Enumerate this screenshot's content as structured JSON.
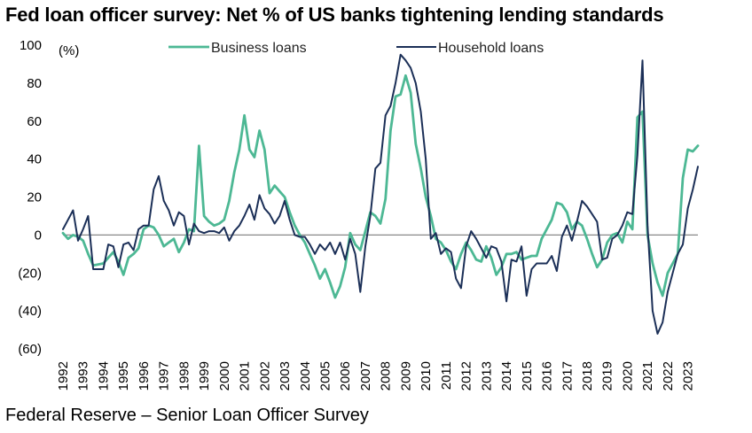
{
  "chart_data": {
    "type": "line",
    "title": "Fed loan officer survey: Net % of US banks tightening lending standards",
    "ylabel": "(%)",
    "source": "Federal Reserve – Senior Loan Officer Survey",
    "ylim": [
      -60,
      100
    ],
    "xlim": [
      1992,
      2023.5
    ],
    "y_ticks": [
      100,
      80,
      60,
      40,
      20,
      0,
      -20,
      -40,
      -60
    ],
    "y_tick_labels": [
      "100",
      "80",
      "60",
      "40",
      "20",
      "0",
      "(20)",
      "(40)",
      "(60)"
    ],
    "x_tick_labels": [
      "1992",
      "1993",
      "1994",
      "1995",
      "1996",
      "1997",
      "1998",
      "1999",
      "2000",
      "2001",
      "2002",
      "2003",
      "2004",
      "2005",
      "2006",
      "2007",
      "2008",
      "2009",
      "2010",
      "2011",
      "2012",
      "2013",
      "2014",
      "2015",
      "2016",
      "2017",
      "2018",
      "2019",
      "2020",
      "2021",
      "2022",
      "2023"
    ],
    "grid": false,
    "legend": "top",
    "colors": {
      "business": "#4db894",
      "household": "#1b2f57",
      "zero_line": "#888888"
    },
    "series": [
      {
        "name": "Business loans",
        "points": [
          [
            1992.0,
            1
          ],
          [
            1992.25,
            -2
          ],
          [
            1992.5,
            0
          ],
          [
            1992.75,
            -1
          ],
          [
            1993.0,
            -3
          ],
          [
            1993.25,
            -10
          ],
          [
            1993.5,
            -16
          ],
          [
            1994.0,
            -15
          ],
          [
            1994.25,
            -12
          ],
          [
            1994.5,
            -9
          ],
          [
            1994.75,
            -14
          ],
          [
            1995.0,
            -21
          ],
          [
            1995.25,
            -12
          ],
          [
            1995.5,
            -10
          ],
          [
            1995.75,
            -7
          ],
          [
            1996.0,
            3
          ],
          [
            1996.25,
            5
          ],
          [
            1996.5,
            4
          ],
          [
            1996.75,
            0
          ],
          [
            1997.0,
            -6
          ],
          [
            1997.25,
            -4
          ],
          [
            1997.5,
            -2
          ],
          [
            1997.75,
            -9
          ],
          [
            1998.0,
            -4
          ],
          [
            1998.25,
            3
          ],
          [
            1998.5,
            2
          ],
          [
            1998.75,
            47
          ],
          [
            1999.0,
            10
          ],
          [
            1999.25,
            7
          ],
          [
            1999.5,
            5
          ],
          [
            1999.75,
            6
          ],
          [
            2000.0,
            8
          ],
          [
            2000.25,
            18
          ],
          [
            2000.5,
            33
          ],
          [
            2000.75,
            45
          ],
          [
            2001.0,
            63
          ],
          [
            2001.25,
            45
          ],
          [
            2001.5,
            41
          ],
          [
            2001.75,
            55
          ],
          [
            2002.0,
            45
          ],
          [
            2002.25,
            22
          ],
          [
            2002.5,
            26
          ],
          [
            2002.75,
            23
          ],
          [
            2003.0,
            20
          ],
          [
            2003.25,
            12
          ],
          [
            2003.5,
            5
          ],
          [
            2003.75,
            0
          ],
          [
            2004.0,
            -4
          ],
          [
            2004.25,
            -10
          ],
          [
            2004.5,
            -16
          ],
          [
            2004.75,
            -23
          ],
          [
            2005.0,
            -18
          ],
          [
            2005.25,
            -25
          ],
          [
            2005.5,
            -33
          ],
          [
            2005.75,
            -27
          ],
          [
            2006.0,
            -17
          ],
          [
            2006.25,
            1
          ],
          [
            2006.5,
            -5
          ],
          [
            2006.75,
            -8
          ],
          [
            2007.0,
            2
          ],
          [
            2007.25,
            12
          ],
          [
            2007.5,
            10
          ],
          [
            2007.75,
            6
          ],
          [
            2008.0,
            19
          ],
          [
            2008.25,
            55
          ],
          [
            2008.5,
            73
          ],
          [
            2008.75,
            74
          ],
          [
            2009.0,
            84
          ],
          [
            2009.25,
            75
          ],
          [
            2009.5,
            48
          ],
          [
            2009.75,
            35
          ],
          [
            2010.0,
            20
          ],
          [
            2010.25,
            10
          ],
          [
            2010.5,
            -2
          ],
          [
            2010.75,
            -4
          ],
          [
            2011.0,
            -8
          ],
          [
            2011.25,
            -14
          ],
          [
            2011.5,
            -18
          ],
          [
            2011.75,
            -10
          ],
          [
            2012.0,
            -4
          ],
          [
            2012.25,
            -8
          ],
          [
            2012.5,
            -13
          ],
          [
            2012.75,
            -14
          ],
          [
            2013.0,
            -6
          ],
          [
            2013.25,
            -12
          ],
          [
            2013.5,
            -21
          ],
          [
            2013.75,
            -17
          ],
          [
            2014.0,
            -10
          ],
          [
            2014.25,
            -10
          ],
          [
            2014.5,
            -9
          ],
          [
            2014.75,
            -13
          ],
          [
            2015.0,
            -12
          ],
          [
            2015.25,
            -11
          ],
          [
            2015.5,
            -11
          ],
          [
            2015.75,
            -2
          ],
          [
            2016.0,
            3
          ],
          [
            2016.25,
            8
          ],
          [
            2016.5,
            17
          ],
          [
            2016.75,
            16
          ],
          [
            2017.0,
            12
          ],
          [
            2017.25,
            3
          ],
          [
            2017.5,
            7
          ],
          [
            2017.75,
            5
          ],
          [
            2018.0,
            -2
          ],
          [
            2018.25,
            -10
          ],
          [
            2018.5,
            -17
          ],
          [
            2018.75,
            -13
          ],
          [
            2019.0,
            -4
          ],
          [
            2019.25,
            0
          ],
          [
            2019.5,
            1
          ],
          [
            2019.75,
            -4
          ],
          [
            2020.0,
            7
          ],
          [
            2020.25,
            3
          ],
          [
            2020.5,
            62
          ],
          [
            2020.75,
            65
          ],
          [
            2021.0,
            0
          ],
          [
            2021.25,
            -15
          ],
          [
            2021.5,
            -25
          ],
          [
            2021.75,
            -32
          ],
          [
            2022.0,
            -20
          ],
          [
            2022.25,
            -15
          ],
          [
            2022.5,
            -10
          ],
          [
            2022.75,
            30
          ],
          [
            2023.0,
            45
          ],
          [
            2023.25,
            44
          ],
          [
            2023.5,
            47
          ]
        ]
      },
      {
        "name": "Household loans",
        "points": [
          [
            1992.0,
            3
          ],
          [
            1992.25,
            8
          ],
          [
            1992.5,
            13
          ],
          [
            1992.75,
            -3
          ],
          [
            1993.0,
            3
          ],
          [
            1993.25,
            10
          ],
          [
            1993.5,
            -18
          ],
          [
            1994.0,
            -18
          ],
          [
            1994.25,
            -5
          ],
          [
            1994.5,
            -6
          ],
          [
            1994.75,
            -17
          ],
          [
            1995.0,
            -5
          ],
          [
            1995.25,
            -4
          ],
          [
            1995.5,
            -8
          ],
          [
            1995.75,
            3
          ],
          [
            1996.0,
            5
          ],
          [
            1996.25,
            5
          ],
          [
            1996.5,
            24
          ],
          [
            1996.75,
            31
          ],
          [
            1997.0,
            18
          ],
          [
            1997.25,
            13
          ],
          [
            1997.5,
            5
          ],
          [
            1997.75,
            12
          ],
          [
            1998.0,
            10
          ],
          [
            1998.25,
            -5
          ],
          [
            1998.5,
            6
          ],
          [
            1998.75,
            2
          ],
          [
            1999.0,
            1
          ],
          [
            1999.25,
            2
          ],
          [
            1999.5,
            2
          ],
          [
            1999.75,
            1
          ],
          [
            2000.0,
            4
          ],
          [
            2000.25,
            -3
          ],
          [
            2000.5,
            2
          ],
          [
            2000.75,
            5
          ],
          [
            2001.0,
            10
          ],
          [
            2001.25,
            16
          ],
          [
            2001.5,
            8
          ],
          [
            2001.75,
            21
          ],
          [
            2002.0,
            14
          ],
          [
            2002.25,
            11
          ],
          [
            2002.5,
            6
          ],
          [
            2002.75,
            10
          ],
          [
            2003.0,
            18
          ],
          [
            2003.25,
            8
          ],
          [
            2003.5,
            0
          ],
          [
            2003.75,
            -1
          ],
          [
            2004.0,
            -1
          ],
          [
            2004.25,
            -5
          ],
          [
            2004.5,
            -10
          ],
          [
            2004.75,
            -5
          ],
          [
            2005.0,
            -8
          ],
          [
            2005.25,
            -4
          ],
          [
            2005.5,
            -10
          ],
          [
            2005.75,
            -4
          ],
          [
            2006.0,
            -13
          ],
          [
            2006.25,
            -2
          ],
          [
            2006.5,
            -10
          ],
          [
            2006.75,
            -30
          ],
          [
            2007.0,
            -6
          ],
          [
            2007.25,
            10
          ],
          [
            2007.5,
            35
          ],
          [
            2007.75,
            38
          ],
          [
            2008.0,
            63
          ],
          [
            2008.25,
            68
          ],
          [
            2008.5,
            80
          ],
          [
            2008.75,
            95
          ],
          [
            2009.0,
            92
          ],
          [
            2009.25,
            88
          ],
          [
            2009.5,
            80
          ],
          [
            2009.75,
            65
          ],
          [
            2010.0,
            40
          ],
          [
            2010.25,
            -2
          ],
          [
            2010.5,
            1
          ],
          [
            2010.75,
            -10
          ],
          [
            2011.0,
            -7
          ],
          [
            2011.25,
            -9
          ],
          [
            2011.5,
            -23
          ],
          [
            2011.75,
            -28
          ],
          [
            2012.0,
            -6
          ],
          [
            2012.25,
            2
          ],
          [
            2012.5,
            -2
          ],
          [
            2012.75,
            -7
          ],
          [
            2013.0,
            -12
          ],
          [
            2013.25,
            -6
          ],
          [
            2013.5,
            -7
          ],
          [
            2013.75,
            -14
          ],
          [
            2014.0,
            -35
          ],
          [
            2014.25,
            -13
          ],
          [
            2014.5,
            -14
          ],
          [
            2014.75,
            -6
          ],
          [
            2015.0,
            -32
          ],
          [
            2015.25,
            -18
          ],
          [
            2015.5,
            -15
          ],
          [
            2015.75,
            -15
          ],
          [
            2016.0,
            -15
          ],
          [
            2016.25,
            -11
          ],
          [
            2016.5,
            -19
          ],
          [
            2016.75,
            -1
          ],
          [
            2017.0,
            5
          ],
          [
            2017.25,
            -3
          ],
          [
            2017.5,
            7
          ],
          [
            2017.75,
            18
          ],
          [
            2018.0,
            15
          ],
          [
            2018.25,
            11
          ],
          [
            2018.5,
            7
          ],
          [
            2018.75,
            -13
          ],
          [
            2019.0,
            -12
          ],
          [
            2019.25,
            -2
          ],
          [
            2019.5,
            0
          ],
          [
            2019.75,
            5
          ],
          [
            2020.0,
            12
          ],
          [
            2020.25,
            11
          ],
          [
            2020.5,
            42
          ],
          [
            2020.75,
            92
          ],
          [
            2021.0,
            5
          ],
          [
            2021.25,
            -40
          ],
          [
            2021.5,
            -52
          ],
          [
            2021.75,
            -46
          ],
          [
            2022.0,
            -30
          ],
          [
            2022.25,
            -20
          ],
          [
            2022.5,
            -10
          ],
          [
            2022.75,
            -5
          ],
          [
            2023.0,
            14
          ],
          [
            2023.25,
            24
          ],
          [
            2023.5,
            36
          ]
        ]
      }
    ]
  }
}
